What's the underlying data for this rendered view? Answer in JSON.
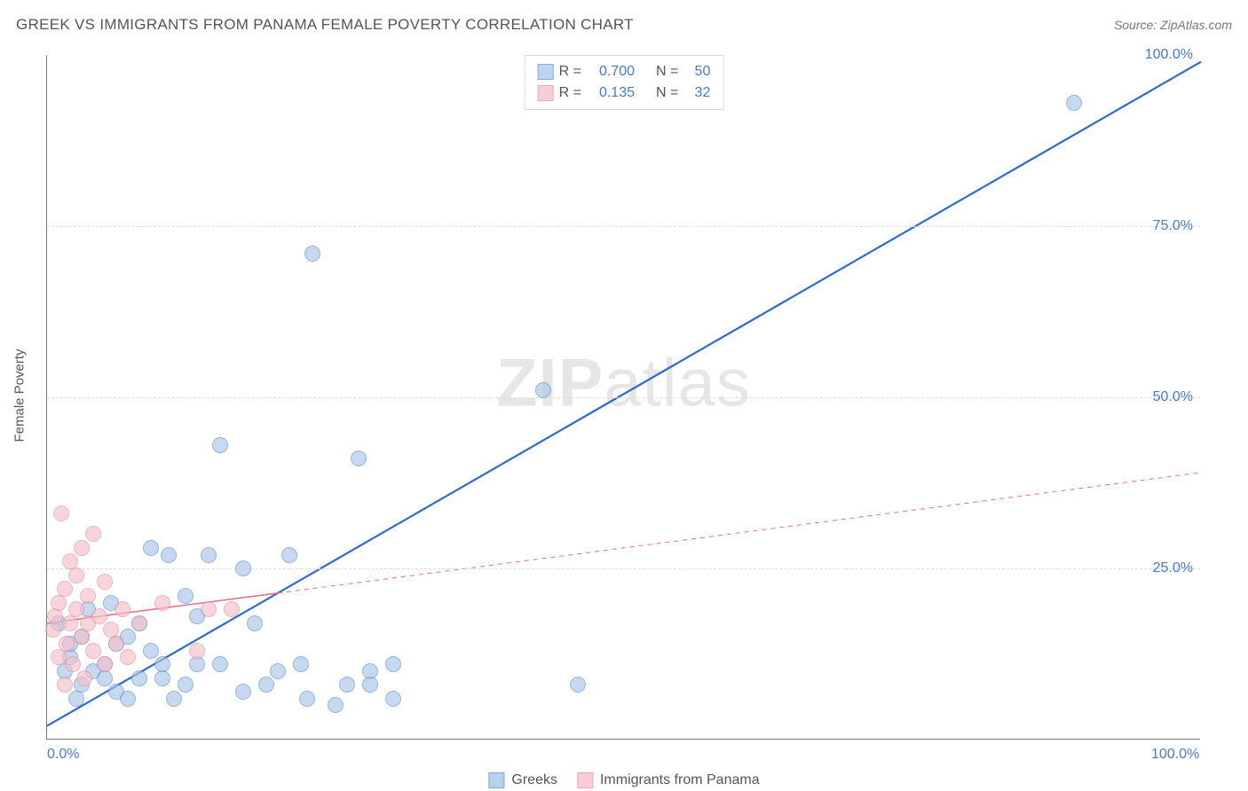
{
  "title": "GREEK VS IMMIGRANTS FROM PANAMA FEMALE POVERTY CORRELATION CHART",
  "source": "Source: ZipAtlas.com",
  "ylabel": "Female Poverty",
  "watermark": {
    "prefix": "ZIP",
    "suffix": "atlas"
  },
  "chart": {
    "type": "scatter",
    "xlim": [
      0,
      100
    ],
    "ylim": [
      0,
      100
    ],
    "x_ticks": [
      {
        "v": 0,
        "label": "0.0%"
      },
      {
        "v": 100,
        "label": "100.0%"
      }
    ],
    "y_ticks": [
      {
        "v": 25,
        "label": "25.0%"
      },
      {
        "v": 50,
        "label": "50.0%"
      },
      {
        "v": 75,
        "label": "75.0%"
      },
      {
        "v": 100,
        "label": "100.0%"
      }
    ],
    "grid_y": [
      25,
      50,
      75
    ],
    "grid_color": "#e4e4e4",
    "background_color": "#ffffff",
    "dot_radius": 9,
    "series": [
      {
        "name": "Greeks",
        "label": "Greeks",
        "fill": "#a9c6ea",
        "stroke": "#5f8fc9",
        "fill_opacity": 0.65,
        "r_value": "0.700",
        "n_value": "50",
        "regression": {
          "x1": 0,
          "y1": 2,
          "x2": 100,
          "y2": 99,
          "stroke": "#2d6bd1",
          "width": 2.2,
          "solid_until": 100
        },
        "points": [
          [
            1,
            17
          ],
          [
            1.5,
            10
          ],
          [
            2,
            12
          ],
          [
            2,
            14
          ],
          [
            2.5,
            6
          ],
          [
            3,
            8
          ],
          [
            3,
            15
          ],
          [
            3.5,
            19
          ],
          [
            4,
            10
          ],
          [
            5,
            9
          ],
          [
            5,
            11
          ],
          [
            5.5,
            20
          ],
          [
            6,
            7
          ],
          [
            6,
            14
          ],
          [
            7,
            6
          ],
          [
            7,
            15
          ],
          [
            8,
            9
          ],
          [
            8,
            17
          ],
          [
            9,
            13
          ],
          [
            9,
            28
          ],
          [
            10,
            9
          ],
          [
            10,
            11
          ],
          [
            10.5,
            27
          ],
          [
            11,
            6
          ],
          [
            12,
            21
          ],
          [
            12,
            8
          ],
          [
            13,
            11
          ],
          [
            13,
            18
          ],
          [
            14,
            27
          ],
          [
            15,
            43
          ],
          [
            15,
            11
          ],
          [
            17,
            25
          ],
          [
            17,
            7
          ],
          [
            18,
            17
          ],
          [
            19,
            8
          ],
          [
            20,
            10
          ],
          [
            21,
            27
          ],
          [
            22,
            11
          ],
          [
            22.5,
            6
          ],
          [
            23,
            71
          ],
          [
            25,
            5
          ],
          [
            26,
            8
          ],
          [
            27,
            41
          ],
          [
            28,
            10
          ],
          [
            28,
            8
          ],
          [
            30,
            11
          ],
          [
            30,
            6
          ],
          [
            43,
            51
          ],
          [
            46,
            8
          ],
          [
            89,
            93
          ]
        ]
      },
      {
        "name": "Immigrants from Panama",
        "label": "Immigrants from Panama",
        "fill": "#f4bfc9",
        "stroke": "#e290a2",
        "fill_opacity": 0.65,
        "r_value": "0.135",
        "n_value": "32",
        "regression": {
          "x1": 0,
          "y1": 17,
          "x2": 100,
          "y2": 39,
          "stroke": "#e56d88",
          "width": 1.6,
          "solid_until": 20
        },
        "points": [
          [
            0.5,
            16
          ],
          [
            0.7,
            18
          ],
          [
            1,
            12
          ],
          [
            1,
            20
          ],
          [
            1.2,
            33
          ],
          [
            1.5,
            8
          ],
          [
            1.5,
            22
          ],
          [
            1.7,
            14
          ],
          [
            2,
            17
          ],
          [
            2,
            26
          ],
          [
            2.2,
            11
          ],
          [
            2.5,
            19
          ],
          [
            2.5,
            24
          ],
          [
            3,
            15
          ],
          [
            3,
            28
          ],
          [
            3.2,
            9
          ],
          [
            3.5,
            17
          ],
          [
            3.5,
            21
          ],
          [
            4,
            13
          ],
          [
            4,
            30
          ],
          [
            4.5,
            18
          ],
          [
            5,
            11
          ],
          [
            5,
            23
          ],
          [
            5.5,
            16
          ],
          [
            6,
            14
          ],
          [
            6.5,
            19
          ],
          [
            7,
            12
          ],
          [
            8,
            17
          ],
          [
            10,
            20
          ],
          [
            13,
            13
          ],
          [
            14,
            19
          ],
          [
            16,
            19
          ]
        ]
      }
    ]
  }
}
